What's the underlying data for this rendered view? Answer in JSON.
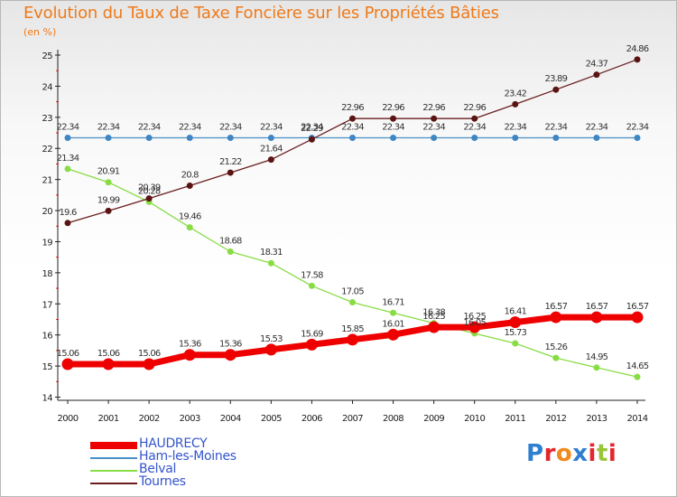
{
  "title": "Evolution du Taux de Taxe Foncière sur les Propriétés Bâties",
  "unit_label": "(en %)",
  "logo_text": "Proxiti",
  "chart_data": {
    "type": "line",
    "title": "Evolution du Taux de Taxe Foncière sur les Propriétés Bâties",
    "ylabel": "(en %)",
    "xlabel": "",
    "x": [
      "2000",
      "2001",
      "2002",
      "2003",
      "2004",
      "2005",
      "2006",
      "2007",
      "2008",
      "2009",
      "2010",
      "2011",
      "2012",
      "2013",
      "2014"
    ],
    "yticks": [
      "14",
      "15",
      "16",
      "17",
      "18",
      "19",
      "20",
      "21",
      "22",
      "23",
      "24",
      "25"
    ],
    "ylim": [
      14,
      25
    ],
    "grid": false,
    "legend_position": "bottom-left",
    "series": [
      {
        "name": "HAUDRECY",
        "color": "#ee0000",
        "values": [
          15.06,
          15.06,
          15.06,
          15.36,
          15.36,
          15.53,
          15.69,
          15.85,
          16.01,
          16.25,
          16.25,
          16.41,
          16.57,
          16.57,
          16.57
        ],
        "labels": [
          "15.06",
          "15.06",
          "15.06",
          "15.36",
          "15.36",
          "15.53",
          "15.69",
          "15.85",
          "16.01",
          "16.25",
          "16.25",
          "16.41",
          "16.57",
          "16.57",
          "16.57"
        ]
      },
      {
        "name": "Ham-les-Moines",
        "color": "#4a90c8",
        "values": [
          22.34,
          22.34,
          22.34,
          22.34,
          22.34,
          22.34,
          22.34,
          22.34,
          22.34,
          22.34,
          22.34,
          22.34,
          22.34,
          22.34,
          22.34
        ],
        "labels": [
          "22.34",
          "22.34",
          "22.34",
          "22.34",
          "22.34",
          "22.34",
          "22.34",
          "22.34",
          "22.34",
          "22.34",
          "22.34",
          "22.34",
          "22.34",
          "22.34",
          "22.34"
        ]
      },
      {
        "name": "Belval",
        "color": "#88dd44",
        "values": [
          21.34,
          20.91,
          20.28,
          19.46,
          18.68,
          18.31,
          17.58,
          17.05,
          16.71,
          16.38,
          16.05,
          15.73,
          15.26,
          14.95,
          14.65
        ],
        "labels": [
          "21.34",
          "20.91",
          "20.28",
          "19.46",
          "18.68",
          "18.31",
          "17.58",
          "17.05",
          "16.71",
          "16.38",
          "16.05",
          "15.73",
          "15.26",
          "14.95",
          "14.65"
        ]
      },
      {
        "name": "Tournes",
        "color": "#6b1e1e",
        "values": [
          19.6,
          19.99,
          20.39,
          20.8,
          21.22,
          21.64,
          22.29,
          22.96,
          22.96,
          22.96,
          22.96,
          23.42,
          23.89,
          24.37,
          24.86
        ],
        "labels": [
          "19.6",
          "19.99",
          "20.39",
          "20.8",
          "21.22",
          "21.64",
          "22.29",
          "22.96",
          "22.96",
          "22.96",
          "22.96",
          "23.42",
          "23.89",
          "24.37",
          "24.86"
        ]
      }
    ]
  }
}
